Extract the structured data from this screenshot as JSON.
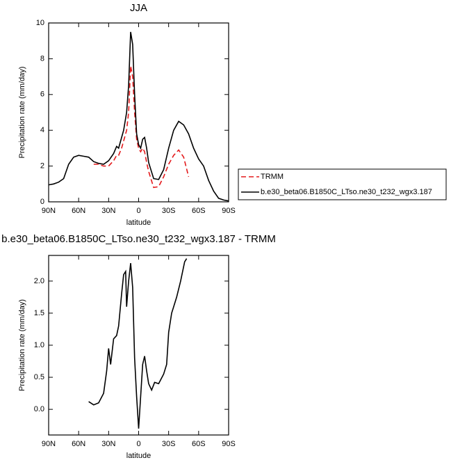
{
  "chart_data": [
    {
      "type": "line",
      "title": "JJA",
      "xlabel": "latitude",
      "ylabel": "Precipitation rate (mm/day)",
      "x": [
        90,
        85,
        80,
        75,
        70,
        65,
        60,
        55,
        50,
        45,
        40,
        35,
        30,
        25,
        22,
        20,
        17,
        15,
        12,
        10,
        8,
        6,
        4,
        2,
        0,
        -2,
        -4,
        -6,
        -8,
        -10,
        -15,
        -20,
        -25,
        -30,
        -35,
        -40,
        -45,
        -50,
        -55,
        -60,
        -65,
        -70,
        -75,
        -80,
        -85,
        -90
      ],
      "series": [
        {
          "name": "TRMM",
          "color": "#e41a1c",
          "dashed": true,
          "values": [
            null,
            null,
            null,
            null,
            null,
            null,
            null,
            null,
            null,
            2.1,
            2.1,
            2.0,
            2.0,
            2.3,
            2.6,
            2.6,
            3.0,
            3.4,
            4.0,
            5.0,
            7.6,
            7.0,
            5.0,
            3.5,
            3.0,
            2.8,
            3.0,
            2.8,
            2.2,
            1.7,
            0.8,
            0.85,
            1.4,
            2.1,
            2.6,
            2.9,
            2.5,
            1.4,
            null,
            null,
            null,
            null,
            null,
            null,
            null,
            null
          ]
        },
        {
          "name": "b.e30_beta06.B1850C_LTso.ne30_t232_wgx3.187",
          "color": "#000000",
          "dashed": false,
          "values": [
            0.95,
            1.0,
            1.1,
            1.3,
            2.1,
            2.5,
            2.6,
            2.55,
            2.5,
            2.25,
            2.15,
            2.1,
            2.3,
            2.7,
            3.1,
            3.0,
            3.6,
            4.0,
            5.0,
            6.5,
            9.5,
            8.8,
            6.0,
            3.8,
            3.2,
            3.0,
            3.5,
            3.6,
            3.0,
            2.2,
            1.3,
            1.25,
            1.8,
            3.0,
            4.0,
            4.5,
            4.3,
            3.8,
            3.0,
            2.4,
            2.0,
            1.2,
            0.6,
            0.2,
            0.1,
            0.05
          ]
        }
      ],
      "xlim": [
        90,
        -90
      ],
      "xticks": [
        {
          "value": 90,
          "label": "90N"
        },
        {
          "value": 60,
          "label": "60N"
        },
        {
          "value": 30,
          "label": "30N"
        },
        0,
        {
          "value": -30,
          "label": "30S"
        },
        {
          "value": -60,
          "label": "60S"
        },
        {
          "value": -90,
          "label": "90S"
        }
      ],
      "ylim": [
        0,
        10
      ],
      "yticks": [
        0,
        2,
        4,
        6,
        8,
        10
      ],
      "legend": "right"
    },
    {
      "type": "line",
      "title": "b.e30_beta06.B1850C_LTso.ne30_t232_wgx3.187 - TRMM",
      "xlabel": "latitude",
      "ylabel": "Precipitation rate (mm/day)",
      "x": [
        50,
        45,
        40,
        35,
        32,
        30,
        28,
        25,
        22,
        20,
        17,
        15,
        13,
        12,
        10,
        8,
        6,
        4,
        2,
        0,
        -2,
        -4,
        -6,
        -8,
        -10,
        -13,
        -16,
        -20,
        -25,
        -28,
        -30,
        -33,
        -35,
        -38,
        -42,
        -46,
        -48
      ],
      "series": [
        {
          "name": null,
          "color": "#000000",
          "dashed": false,
          "values": [
            0.12,
            0.07,
            0.1,
            0.25,
            0.6,
            0.95,
            0.7,
            1.1,
            1.15,
            1.3,
            1.8,
            2.1,
            2.15,
            1.6,
            2.0,
            2.28,
            1.9,
            0.8,
            0.2,
            -0.3,
            0.2,
            0.7,
            0.83,
            0.6,
            0.4,
            0.3,
            0.42,
            0.4,
            0.55,
            0.7,
            1.2,
            1.5,
            1.6,
            1.75,
            2.0,
            2.3,
            2.35
          ]
        }
      ],
      "xlim": [
        90,
        -90
      ],
      "xticks": [
        {
          "value": 90,
          "label": "90N"
        },
        {
          "value": 60,
          "label": "60N"
        },
        {
          "value": 30,
          "label": "30N"
        },
        0,
        {
          "value": -30,
          "label": "30S"
        },
        {
          "value": -60,
          "label": "60S"
        },
        {
          "value": -90,
          "label": "90S"
        }
      ],
      "ylim": [
        -0.4,
        2.4
      ],
      "yticks": [
        {
          "value": 0,
          "label": "0.0"
        },
        0.5,
        {
          "value": 1,
          "label": "1.0"
        },
        1.5,
        {
          "value": 2,
          "label": "2.0"
        }
      ]
    }
  ]
}
